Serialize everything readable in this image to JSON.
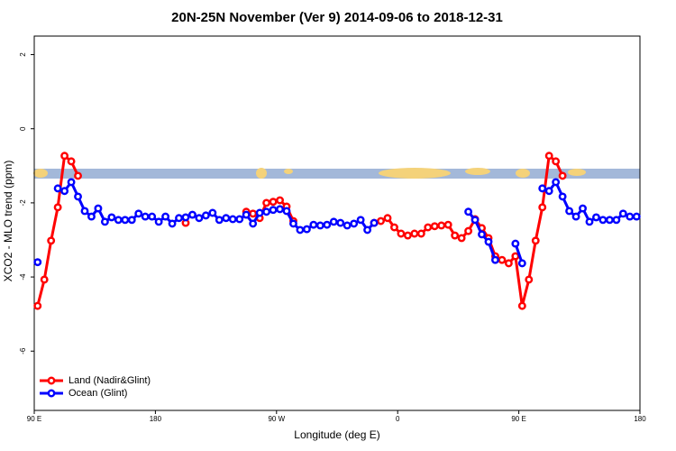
{
  "chart_data": {
    "type": "line",
    "title": "20N-25N November (Ver 9)   2014-09-06 to 2018-12-31",
    "x_label": "Longitude (deg E)",
    "y_label": "XCO2 - MLO trend (ppm)",
    "x": [
      92.5,
      97.5,
      102.5,
      107.5,
      112.5,
      117.5,
      122.5,
      127.5,
      132.5,
      137.5,
      142.5,
      147.5,
      152.5,
      157.5,
      162.5,
      167.5,
      172.5,
      177.5,
      182.5,
      187.5,
      192.5,
      197.5,
      202.5,
      207.5,
      212.5,
      217.5,
      222.5,
      227.5,
      232.5,
      237.5,
      242.5,
      247.5,
      252.5,
      257.5,
      262.5,
      267.5,
      272.5,
      277.5,
      282.5,
      287.5,
      292.5,
      297.5,
      302.5,
      307.5,
      312.5,
      317.5,
      322.5,
      327.5,
      332.5,
      337.5,
      342.5,
      347.5,
      352.5,
      357.5,
      362.5,
      367.5,
      372.5,
      377.5,
      382.5,
      387.5,
      392.5,
      397.5,
      402.5,
      407.5,
      412.5,
      417.5,
      422.5,
      427.5,
      432.5,
      437.5,
      442.5,
      447.5,
      452.5,
      457.5,
      462.5,
      467.5,
      472.5,
      477.5,
      482.5,
      487.5,
      492.5,
      497.5,
      502.5,
      507.5,
      512.5,
      517.5,
      522.5,
      527.5,
      532.5,
      537.5
    ],
    "series": [
      {
        "name": "Land (Nadir&Glint)",
        "color": "#ff0000",
        "values": [
          -4.78,
          -4.07,
          -3.02,
          -2.12,
          -0.73,
          -0.88,
          -1.27,
          null,
          null,
          null,
          null,
          null,
          null,
          null,
          null,
          null,
          null,
          null,
          null,
          null,
          null,
          null,
          -2.54,
          null,
          null,
          null,
          null,
          null,
          null,
          null,
          null,
          -2.24,
          -2.29,
          -2.41,
          -2.0,
          -1.97,
          -1.93,
          -2.1,
          -2.49,
          null,
          null,
          null,
          null,
          null,
          null,
          null,
          null,
          null,
          null,
          null,
          -2.54,
          -2.49,
          -2.41,
          -2.66,
          -2.83,
          -2.88,
          -2.83,
          -2.83,
          -2.66,
          -2.63,
          -2.61,
          -2.59,
          -2.88,
          -2.95,
          -2.76,
          -2.44,
          -2.68,
          -2.95,
          -3.44,
          -3.54,
          -3.63,
          -3.44,
          -4.78,
          -4.07,
          -3.02,
          -2.12,
          -0.73,
          -0.88,
          -1.27,
          null,
          null,
          null,
          null,
          null,
          null,
          null,
          null,
          null,
          null,
          null
        ]
      },
      {
        "name": "Ocean (Glint)",
        "color": "#0000ff",
        "values": [
          -3.6,
          null,
          null,
          -1.61,
          -1.68,
          -1.44,
          -1.83,
          -2.22,
          -2.37,
          -2.15,
          -2.51,
          -2.39,
          -2.46,
          -2.46,
          -2.46,
          -2.29,
          -2.37,
          -2.37,
          -2.51,
          -2.37,
          -2.56,
          -2.41,
          -2.39,
          -2.32,
          -2.41,
          -2.34,
          -2.27,
          -2.46,
          -2.41,
          -2.44,
          -2.44,
          -2.32,
          -2.56,
          -2.27,
          -2.24,
          -2.19,
          -2.17,
          -2.22,
          -2.56,
          -2.73,
          -2.71,
          -2.59,
          -2.61,
          -2.59,
          -2.51,
          -2.54,
          -2.61,
          -2.56,
          -2.46,
          -2.73,
          -2.54,
          null,
          null,
          null,
          null,
          null,
          null,
          null,
          null,
          null,
          null,
          null,
          null,
          null,
          -2.24,
          -2.46,
          -2.85,
          -3.05,
          -3.54,
          null,
          null,
          -3.1,
          -3.63,
          null,
          null,
          -1.61,
          -1.68,
          -1.44,
          -1.83,
          -2.22,
          -2.37,
          -2.15,
          -2.51,
          -2.39,
          -2.46,
          -2.46,
          -2.46,
          -2.29,
          -2.37,
          -2.37
        ]
      }
    ],
    "xlim": [
      90,
      540
    ],
    "xticks": [
      {
        "value": 90,
        "label": "90 E"
      },
      180,
      {
        "value": 270,
        "label": "90 W"
      },
      {
        "value": 360,
        "label": "0"
      },
      {
        "value": 450,
        "label": "90 E"
      },
      {
        "value": 540,
        "label": "180"
      }
    ],
    "ylim": [
      -7.6,
      2.5
    ],
    "yticks": [
      -6,
      -4,
      -2,
      0,
      2
    ],
    "legend": "bottom-left"
  }
}
